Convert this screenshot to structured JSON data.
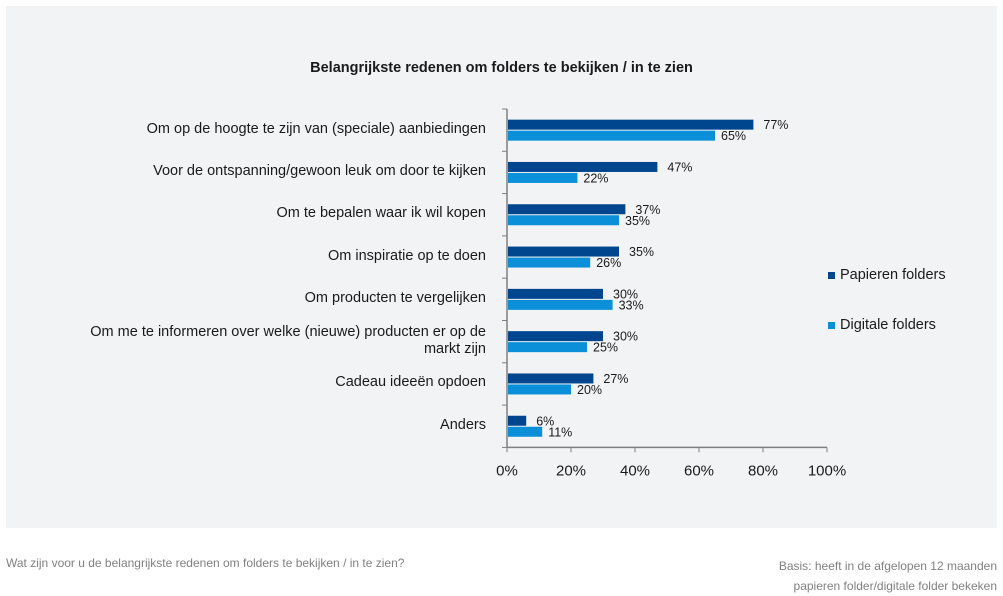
{
  "colors": {
    "papieren": "#00468f",
    "digitale": "#0a8fd8",
    "axis": "#808080",
    "panel": "#f2f3f5"
  },
  "footer": {
    "question": "Wat zijn voor u de belangrijkste redenen om folders te bekijken / in te zien?",
    "basis_line1": "Basis: heeft in de afgelopen 12 maanden",
    "basis_line2": "papieren folder/digitale folder bekeken"
  },
  "chart_data": {
    "type": "bar",
    "orientation": "horizontal",
    "title": "Belangrijkste redenen om folders te bekijken / in te zien",
    "xlabel": "",
    "ylabel": "",
    "xlim": [
      0,
      100
    ],
    "x_ticks": [
      "0%",
      "20%",
      "40%",
      "60%",
      "80%",
      "100%"
    ],
    "x_tick_values": [
      0,
      20,
      40,
      60,
      80,
      100
    ],
    "grid": false,
    "legend_position": "right",
    "categories": [
      [
        "Om op de hoogte te zijn van (speciale) aanbiedingen"
      ],
      [
        "Voor de ontspanning/gewoon leuk om door te kijken"
      ],
      [
        "Om te bepalen waar ik wil kopen"
      ],
      [
        "Om inspiratie op te doen"
      ],
      [
        "Om producten te vergelijken"
      ],
      [
        "Om me te informeren over welke (nieuwe) producten er op de",
        "markt zijn"
      ],
      [
        "Cadeau ideeën opdoen"
      ],
      [
        "Anders"
      ]
    ],
    "series": [
      {
        "name": "Papieren folders",
        "values": [
          77,
          47,
          37,
          35,
          30,
          30,
          27,
          6
        ],
        "labels": [
          "77%",
          "47%",
          "37%",
          "35%",
          "30%",
          "30%",
          "27%",
          "6%"
        ]
      },
      {
        "name": "Digitale folders",
        "values": [
          65,
          22,
          35,
          26,
          33,
          25,
          20,
          11
        ],
        "labels": [
          "65%",
          "22%",
          "35%",
          "26%",
          "33%",
          "25%",
          "20%",
          "11%"
        ]
      }
    ]
  }
}
